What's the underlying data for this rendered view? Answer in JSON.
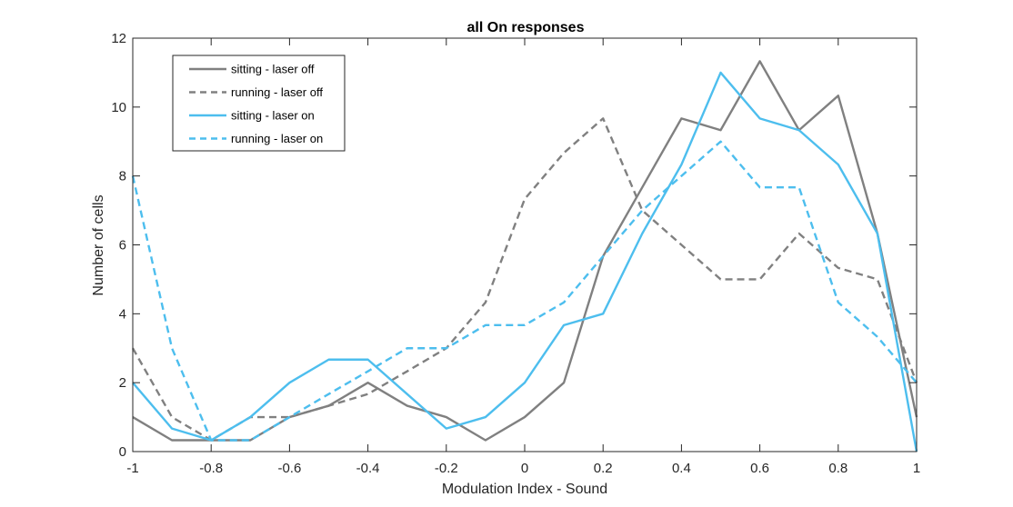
{
  "chart_data": {
    "type": "line",
    "title": "all On responses",
    "xlabel": "Modulation Index - Sound",
    "ylabel": "Number of cells",
    "xlim": [
      -1,
      1
    ],
    "ylim": [
      0,
      12
    ],
    "xticks": [
      "-1",
      "-0.8",
      "-0.6",
      "-0.4",
      "-0.2",
      "0",
      "0.2",
      "0.4",
      "0.6",
      "0.8",
      "1"
    ],
    "yticks": [
      "0",
      "2",
      "4",
      "6",
      "8",
      "10",
      "12"
    ],
    "grid": false,
    "legend_position": "top-left",
    "x": [
      -1,
      -0.9,
      -0.8,
      -0.7,
      -0.6,
      -0.5,
      -0.4,
      -0.3,
      -0.2,
      -0.1,
      0,
      0.1,
      0.2,
      0.3,
      0.4,
      0.5,
      0.6,
      0.7,
      0.8,
      0.9,
      1
    ],
    "series": [
      {
        "name": "sitting - laser off",
        "color": "#808080",
        "dashed": false,
        "values": [
          1,
          0.33,
          0.33,
          0.33,
          1,
          1.33,
          2,
          1.33,
          1,
          0.33,
          1,
          2,
          5.67,
          7.67,
          9.67,
          9.33,
          11.33,
          9.33,
          10.33,
          6.33,
          1
        ]
      },
      {
        "name": "running - laser off",
        "color": "#808080",
        "dashed": true,
        "values": [
          3,
          1,
          0.33,
          1,
          1,
          1.33,
          1.67,
          2.33,
          3,
          4.33,
          7.33,
          8.67,
          9.67,
          7,
          6,
          5,
          5,
          6.33,
          5.33,
          5,
          2
        ]
      },
      {
        "name": "sitting - laser on",
        "color": "#4DBEEE",
        "dashed": false,
        "values": [
          2,
          0.67,
          0.33,
          1,
          2,
          2.67,
          2.67,
          1.67,
          0.67,
          1,
          2,
          3.67,
          4,
          6.33,
          8.33,
          11,
          9.67,
          9.33,
          8.33,
          6.33,
          0
        ]
      },
      {
        "name": "running - laser on",
        "color": "#4DBEEE",
        "dashed": true,
        "values": [
          8,
          3,
          0.33,
          0.33,
          1,
          1.67,
          2.33,
          3,
          3,
          3.67,
          3.67,
          4.33,
          5.67,
          7,
          8,
          9,
          7.67,
          7.67,
          4.33,
          3.33,
          2
        ]
      }
    ]
  }
}
